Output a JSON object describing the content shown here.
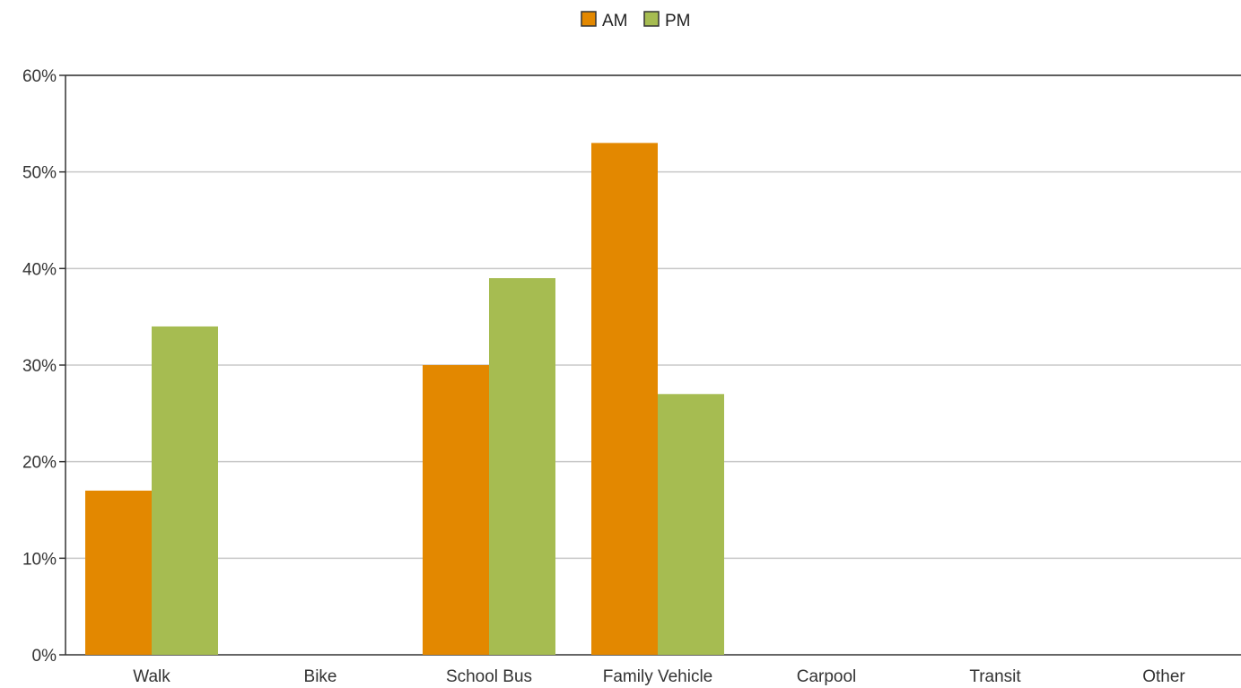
{
  "chart_data": {
    "type": "bar",
    "categories": [
      "Walk",
      "Bike",
      "School Bus",
      "Family Vehicle",
      "Carpool",
      "Transit",
      "Other"
    ],
    "series": [
      {
        "name": "AM",
        "color": "#e38800",
        "values": [
          17,
          0,
          30,
          53,
          0,
          0,
          0
        ]
      },
      {
        "name": "PM",
        "color": "#a6bc51",
        "values": [
          34,
          0,
          39,
          27,
          0,
          0,
          0
        ]
      }
    ],
    "y_ticks": [
      "0%",
      "10%",
      "20%",
      "30%",
      "40%",
      "50%",
      "60%"
    ],
    "ylim": [
      0,
      60
    ],
    "y_unit": "%",
    "grid": true,
    "legend_position": "top-center",
    "gridline_color": "#c8c8c8",
    "axis_color": "#333333"
  }
}
